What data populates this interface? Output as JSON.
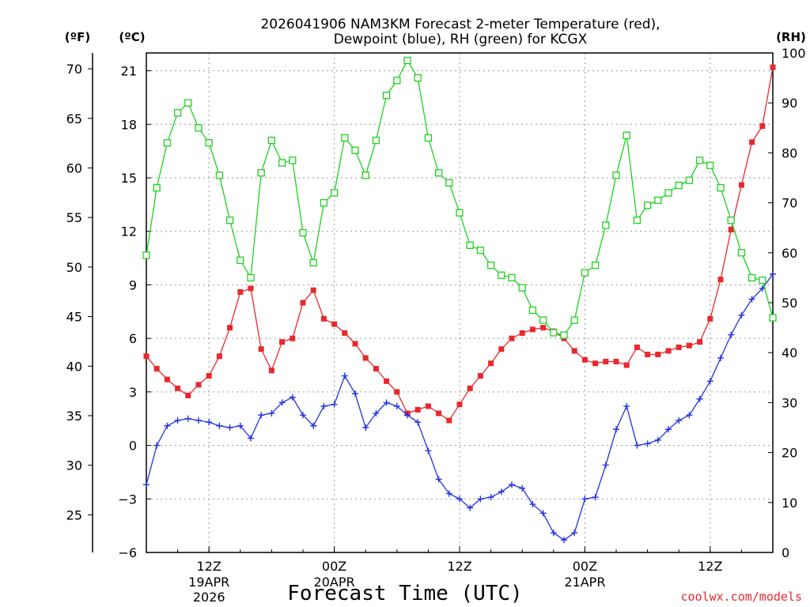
{
  "chart_data": {
    "type": "line",
    "title_line1": "2026041906 NAM3KM Forecast 2-meter Temperature (red),",
    "title_line2": "Dewpoint (blue), RH (green) for KCGX",
    "xlabel": "Forecast Time (UTC)",
    "watermark": "coolwx.com/models",
    "unit_f": "(ºF)",
    "unit_c": "(ºC)",
    "unit_rh": "(RH)",
    "x_tick_labels": [
      {
        "label": "12Z",
        "hour": 12,
        "sub1": "19APR",
        "sub2": "2026"
      },
      {
        "label": "00Z",
        "hour": 24,
        "sub1": "20APR",
        "sub2": ""
      },
      {
        "label": "12Z",
        "hour": 36,
        "sub1": "",
        "sub2": ""
      },
      {
        "label": "00Z",
        "hour": 48,
        "sub1": "21APR",
        "sub2": ""
      },
      {
        "label": "12Z",
        "hour": 60,
        "sub1": "",
        "sub2": ""
      }
    ],
    "x_range_hours": [
      6,
      66
    ],
    "c_range": [
      -6.0,
      22.0
    ],
    "c_ticks": [
      -6,
      -3,
      0,
      3,
      6,
      9,
      12,
      15,
      18,
      21
    ],
    "f_ticks": [
      25,
      30,
      35,
      40,
      45,
      50,
      55,
      60,
      65,
      70
    ],
    "rh_range": [
      0,
      100
    ],
    "rh_ticks": [
      0,
      10,
      20,
      30,
      40,
      50,
      60,
      70,
      80,
      90,
      100
    ],
    "grid": true,
    "series": [
      {
        "name": "Temperature",
        "color": "#e8282e",
        "marker": "filled-square",
        "axis": "C",
        "values": [
          5.0,
          4.3,
          3.7,
          3.2,
          2.8,
          3.4,
          3.9,
          5.0,
          6.6,
          8.6,
          8.8,
          5.4,
          4.2,
          5.8,
          6.0,
          8.0,
          8.7,
          7.1,
          6.8,
          6.3,
          5.7,
          4.9,
          4.3,
          3.6,
          3.0,
          1.8,
          2.0,
          2.2,
          1.8,
          1.4,
          2.3,
          3.2,
          3.9,
          4.6,
          5.4,
          6.0,
          6.3,
          6.5,
          6.6,
          6.4,
          6.0,
          5.3,
          4.8,
          4.6,
          4.7,
          4.7,
          4.5,
          5.5,
          5.1,
          5.1,
          5.3,
          5.5,
          5.6,
          5.8,
          7.1,
          9.3,
          12.1,
          14.6,
          17.0,
          17.9,
          21.2
        ]
      },
      {
        "name": "Dewpoint",
        "color": "#2233e0",
        "marker": "plus",
        "axis": "C",
        "values": [
          -2.2,
          0.0,
          1.1,
          1.4,
          1.5,
          1.4,
          1.3,
          1.1,
          1.0,
          1.1,
          0.4,
          1.7,
          1.8,
          2.4,
          2.7,
          1.7,
          1.1,
          2.2,
          2.3,
          3.9,
          2.9,
          1.0,
          1.8,
          2.4,
          2.2,
          1.7,
          1.3,
          -0.3,
          -1.9,
          -2.7,
          -3.0,
          -3.5,
          -3.0,
          -2.9,
          -2.6,
          -2.2,
          -2.4,
          -3.3,
          -3.8,
          -4.9,
          -5.3,
          -4.9,
          -3.0,
          -2.9,
          -1.1,
          0.9,
          2.2,
          0.0,
          0.1,
          0.3,
          0.9,
          1.4,
          1.7,
          2.6,
          3.6,
          4.9,
          6.2,
          7.3,
          8.2,
          8.8,
          9.6
        ]
      },
      {
        "name": "RH",
        "color": "#1ed21e",
        "marker": "open-square",
        "axis": "RH",
        "values": [
          59.5,
          73,
          82,
          88,
          90,
          85,
          82,
          75.5,
          66.5,
          58.5,
          55,
          76,
          82.5,
          78,
          78.5,
          64,
          58,
          70,
          72,
          83,
          80.5,
          75.5,
          82.5,
          91.5,
          94.5,
          98.5,
          95,
          83,
          76,
          74,
          68,
          61.5,
          60.5,
          57.5,
          55.5,
          55,
          53,
          48.5,
          46.5,
          44,
          43.5,
          46.5,
          56,
          57.5,
          65.5,
          75.5,
          83.5,
          66.5,
          69.5,
          70.5,
          72,
          73.5,
          74.5,
          78.5,
          77.5,
          73,
          66.5,
          60,
          55,
          54.5,
          47
        ]
      }
    ]
  }
}
